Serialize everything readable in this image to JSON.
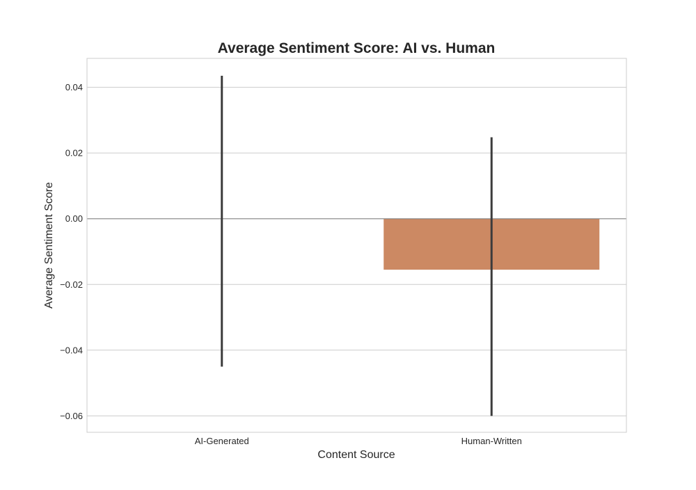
{
  "chart_data": {
    "type": "bar",
    "title": "Average Sentiment Score: AI vs. Human",
    "xlabel": "Content Source",
    "ylabel": "Average Sentiment Score",
    "categories": [
      "AI-Generated",
      "Human-Written"
    ],
    "values": [
      0.0,
      -0.0155
    ],
    "error_bars": [
      {
        "low": -0.045,
        "high": 0.0435
      },
      {
        "low": -0.06,
        "high": 0.0248
      }
    ],
    "ylim": [
      -0.065,
      0.0488
    ],
    "yticks": [
      -0.06,
      -0.04,
      -0.02,
      0.0,
      0.02,
      0.04
    ],
    "ytick_labels": [
      "−0.06",
      "−0.04",
      "−0.02",
      "0.00",
      "0.02",
      "0.04"
    ],
    "grid": "y",
    "colors": {
      "bars": [
        "#cc8963",
        "#cc8963"
      ],
      "error_bar": "#3c3c3c",
      "zero_line": "#808080",
      "grid": "#cccccc",
      "frame": "#cccccc"
    }
  }
}
